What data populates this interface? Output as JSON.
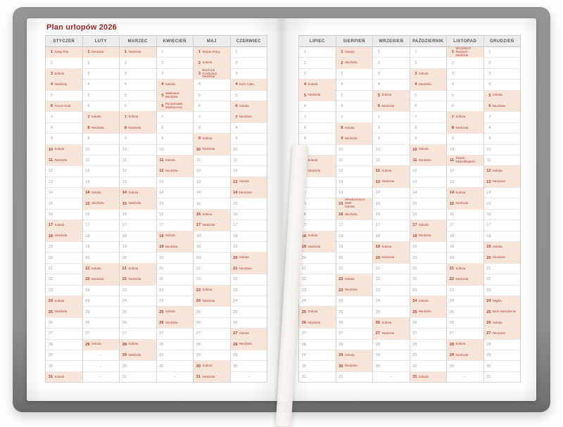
{
  "page_title": "Plan urlopów 2026",
  "dash": "–",
  "colors": {
    "accent": "#a93b32",
    "title": "#9c221d",
    "highlight": "#f8e5da",
    "cover_gray": "#8d8e8e"
  },
  "left_months": [
    {
      "name": "STYCZEŃ",
      "days": 31,
      "marks": [
        [
          1,
          "Nowy Rok"
        ],
        [
          3,
          "Sobota"
        ],
        [
          4,
          "Niedziela"
        ],
        [
          6,
          "Trzech Króli"
        ],
        [
          10,
          "Sobota"
        ],
        [
          11,
          "Niedziela"
        ],
        [
          17,
          "Sobota"
        ],
        [
          18,
          "Niedziela"
        ],
        [
          24,
          "Sobota"
        ],
        [
          25,
          "Niedziela"
        ],
        [
          31,
          "Sobota"
        ]
      ]
    },
    {
      "name": "LUTY",
      "days": 28,
      "marks": [
        [
          1,
          "Niedziela"
        ],
        [
          7,
          "Sobota"
        ],
        [
          8,
          "Niedziela"
        ],
        [
          14,
          "Sobota"
        ],
        [
          15,
          "Niedziela"
        ],
        [
          21,
          "Sobota"
        ],
        [
          22,
          "Niedziela"
        ],
        [
          28,
          "Sobota"
        ]
      ]
    },
    {
      "name": "MARZEC",
      "days": 31,
      "marks": [
        [
          1,
          "Niedziela"
        ],
        [
          7,
          "Sobota"
        ],
        [
          8,
          "Niedziela"
        ],
        [
          14,
          "Sobota"
        ],
        [
          15,
          "Niedziela"
        ],
        [
          21,
          "Sobota"
        ],
        [
          22,
          "Niedziela"
        ],
        [
          28,
          "Sobota"
        ],
        [
          29,
          "Niedziela"
        ]
      ]
    },
    {
      "name": "KWIECIEŃ",
      "days": 30,
      "marks": [
        [
          4,
          "Sobota"
        ],
        [
          5,
          "Wielkanoc\nNiedziela"
        ],
        [
          6,
          "Poniedziałek\nWielkanocny"
        ],
        [
          11,
          "Sobota"
        ],
        [
          12,
          "Niedziela"
        ],
        [
          18,
          "Sobota"
        ],
        [
          19,
          "Niedziela"
        ],
        [
          25,
          "Sobota"
        ],
        [
          26,
          "Niedziela"
        ]
      ]
    },
    {
      "name": "MAJ",
      "days": 31,
      "marks": [
        [
          1,
          "Święto Pracy"
        ],
        [
          2,
          "Sobota"
        ],
        [
          3,
          "Rocznica Konstytucji\nNiedziela"
        ],
        [
          9,
          "Sobota"
        ],
        [
          10,
          "Niedziela"
        ],
        [
          16,
          "Sobota"
        ],
        [
          17,
          "Niedziela"
        ],
        [
          23,
          "Sobota"
        ],
        [
          24,
          "Niedziela"
        ],
        [
          30,
          "Sobota"
        ],
        [
          31,
          "Niedziela"
        ]
      ]
    },
    {
      "name": "CZERWIEC",
      "days": 30,
      "marks": [
        [
          4,
          "Boże Ciało"
        ],
        [
          6,
          "Sobota"
        ],
        [
          7,
          "Niedziela"
        ],
        [
          13,
          "Sobota"
        ],
        [
          14,
          "Niedziela"
        ],
        [
          20,
          "Sobota"
        ],
        [
          21,
          "Niedziela"
        ],
        [
          27,
          "Sobota"
        ],
        [
          28,
          "Niedziela"
        ]
      ]
    }
  ],
  "right_months": [
    {
      "name": "LIPIEC",
      "days": 31,
      "marks": [
        [
          4,
          "Sobota"
        ],
        [
          5,
          "Niedziela"
        ],
        [
          11,
          "Sobota"
        ],
        [
          12,
          "Niedziela"
        ],
        [
          18,
          "Sobota"
        ],
        [
          19,
          "Niedziela"
        ],
        [
          25,
          "Sobota"
        ],
        [
          26,
          "Niedziela"
        ]
      ]
    },
    {
      "name": "SIERPIEŃ",
      "days": 31,
      "marks": [
        [
          1,
          "Sobota"
        ],
        [
          2,
          "Niedziela"
        ],
        [
          8,
          "Sobota"
        ],
        [
          9,
          "Niedziela"
        ],
        [
          15,
          "Wniebowzięcie NMP\nSobota"
        ],
        [
          16,
          "Niedziela"
        ],
        [
          22,
          "Sobota"
        ],
        [
          23,
          "Niedziela"
        ],
        [
          29,
          "Sobota"
        ],
        [
          30,
          "Niedziela"
        ]
      ]
    },
    {
      "name": "WRZESIEŃ",
      "days": 30,
      "marks": [
        [
          5,
          "Sobota"
        ],
        [
          6,
          "Niedziela"
        ],
        [
          12,
          "Sobota"
        ],
        [
          13,
          "Niedziela"
        ],
        [
          19,
          "Sobota"
        ],
        [
          20,
          "Niedziela"
        ],
        [
          26,
          "Sobota"
        ],
        [
          27,
          "Niedziela"
        ]
      ]
    },
    {
      "name": "PAŹDZIERNIK",
      "days": 31,
      "marks": [
        [
          3,
          "Sobota"
        ],
        [
          4,
          "Niedziela"
        ],
        [
          10,
          "Sobota"
        ],
        [
          11,
          "Niedziela"
        ],
        [
          17,
          "Sobota"
        ],
        [
          18,
          "Niedziela"
        ],
        [
          24,
          "Sobota"
        ],
        [
          25,
          "Niedziela"
        ],
        [
          31,
          "Sobota"
        ]
      ]
    },
    {
      "name": "LISTOPAD",
      "days": 30,
      "marks": [
        [
          1,
          "Wszystkich Świętych\nNiedziela"
        ],
        [
          7,
          "Sobota"
        ],
        [
          8,
          "Niedziela"
        ],
        [
          11,
          "Święto Niepodległości"
        ],
        [
          14,
          "Sobota"
        ],
        [
          15,
          "Niedziela"
        ],
        [
          21,
          "Sobota"
        ],
        [
          22,
          "Niedziela"
        ],
        [
          28,
          "Sobota"
        ],
        [
          29,
          "Niedziela"
        ]
      ]
    },
    {
      "name": "GRUDZIEŃ",
      "days": 31,
      "marks": [
        [
          5,
          "Sobota"
        ],
        [
          6,
          "Niedziela"
        ],
        [
          12,
          "Sobota"
        ],
        [
          13,
          "Niedziela"
        ],
        [
          19,
          "Sobota"
        ],
        [
          20,
          "Niedziela"
        ],
        [
          24,
          "Wigilia"
        ],
        [
          25,
          "Boże Narodzenie"
        ],
        [
          26,
          "Sobota"
        ],
        [
          27,
          "Niedziela"
        ]
      ]
    }
  ]
}
